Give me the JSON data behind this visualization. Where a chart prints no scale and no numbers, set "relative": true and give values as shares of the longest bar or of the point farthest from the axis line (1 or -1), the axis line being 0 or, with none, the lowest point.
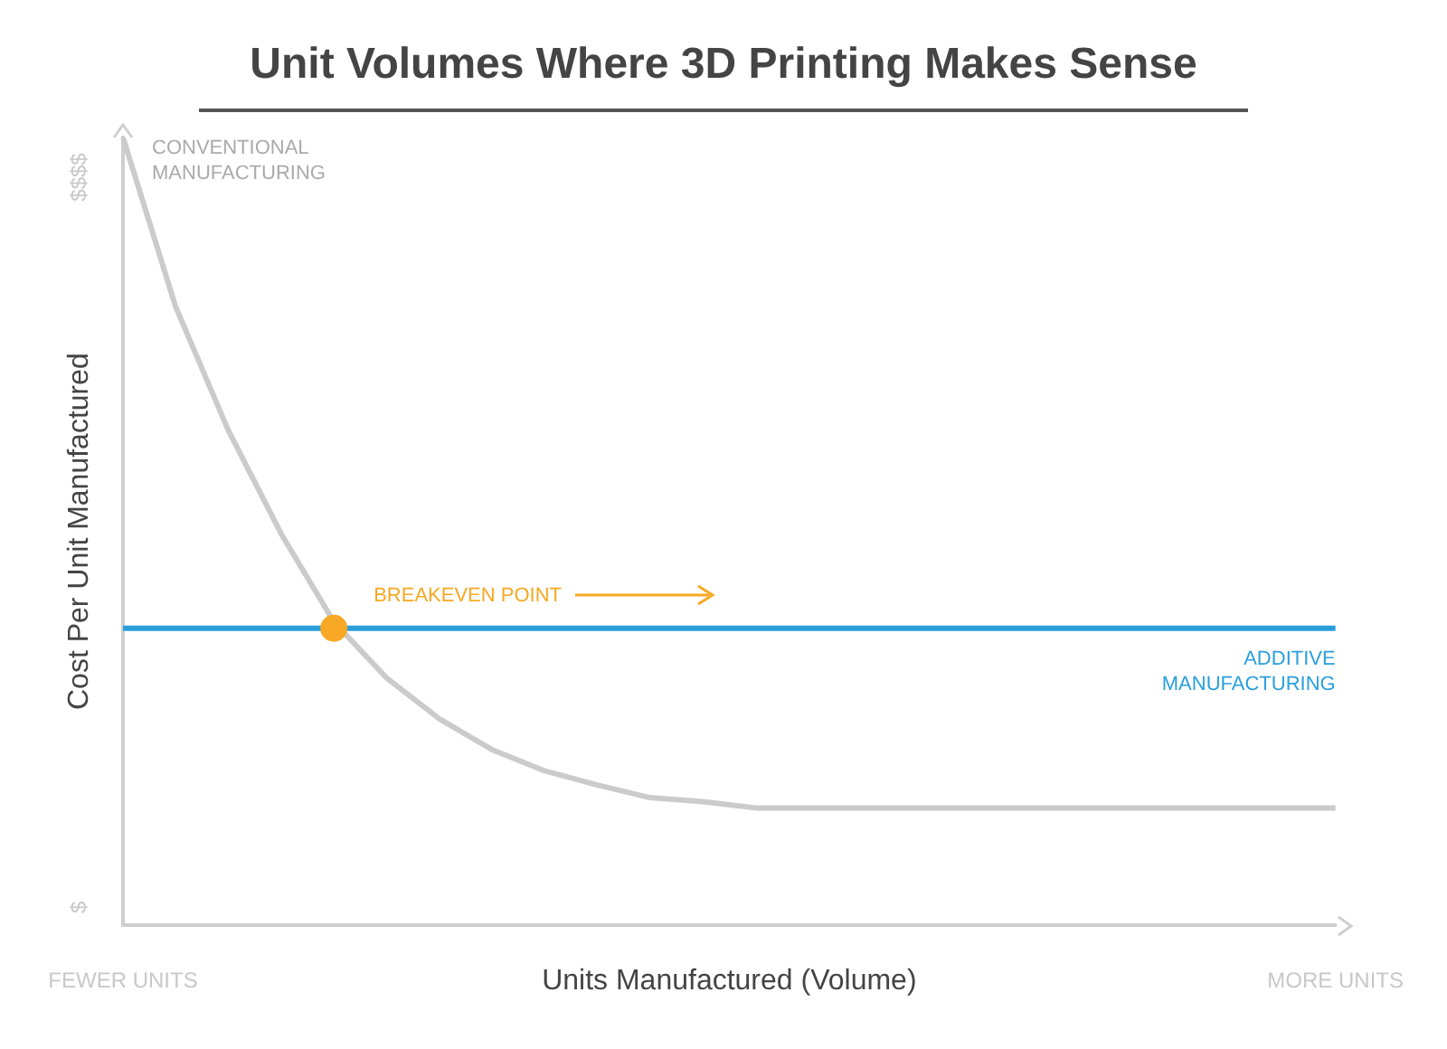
{
  "chart_data": {
    "type": "line",
    "title": "Unit Volumes Where 3D Printing Makes Sense",
    "xlabel": "Units Manufactured (Volume)",
    "ylabel": "Cost Per Unit Manufactured",
    "relative": true,
    "legend": false,
    "grid": false,
    "marker": "none",
    "categories": [
      "FEWER UNITS",
      null,
      null,
      null,
      null,
      null,
      null,
      null,
      null,
      null,
      null,
      null,
      null,
      null,
      null,
      null,
      null,
      null,
      null,
      null,
      null,
      null,
      null,
      "MORE UNITS"
    ],
    "series": [
      {
        "name": "CONVENTIONAL MANUFACTURING",
        "color": "#cbcbcb",
        "values": [
          1,
          0.785,
          0.628,
          0.497,
          0.385,
          0.314,
          0.262,
          0.223,
          0.196,
          0.178,
          0.162,
          0.157,
          0.149,
          0.149,
          0.149,
          0.149,
          0.149,
          0.149,
          0.149,
          0.149,
          0.149,
          0.149,
          0.149,
          0.149
        ]
      },
      {
        "name": "ADDITIVE MANUFACTURING",
        "color": "#2b9fdc",
        "values": [
          0.377,
          0.377,
          0.377,
          0.377,
          0.377,
          0.377,
          0.377,
          0.377,
          0.377,
          0.377,
          0.377,
          0.377,
          0.377,
          0.377,
          0.377,
          0.377,
          0.377,
          0.377,
          0.377,
          0.377,
          0.377,
          0.377,
          0.377,
          0.377
        ]
      },
      {
        "type": "scatter",
        "marker": "circle",
        "color": "#f7a824",
        "values": [
          null,
          null,
          null,
          null,
          0.377,
          null,
          null,
          null,
          null,
          null,
          null,
          null,
          null,
          null,
          null,
          null,
          null,
          null,
          null,
          null,
          null,
          null,
          null,
          null
        ]
      }
    ],
    "annotations": [
      "BREAKEVEN POINT",
      "$$$$",
      "$"
    ]
  }
}
